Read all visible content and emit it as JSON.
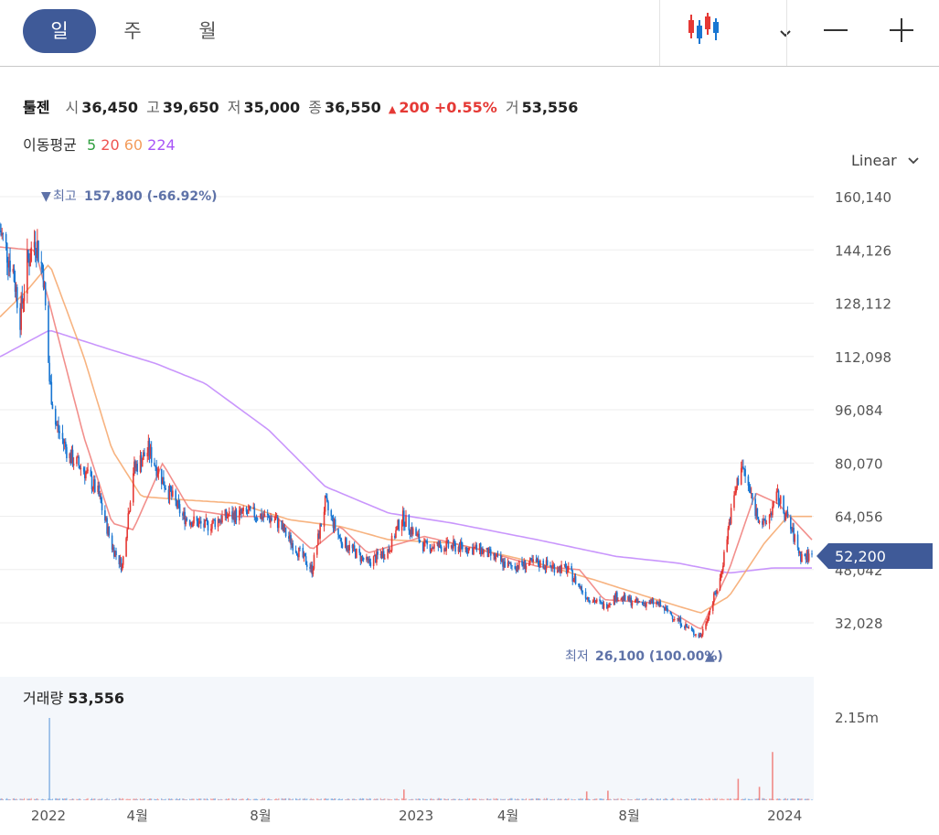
{
  "toolbar": {
    "tabs": [
      {
        "label": "일",
        "active": true
      },
      {
        "label": "주",
        "active": false
      },
      {
        "label": "월",
        "active": false
      }
    ],
    "chart_type_icon": "candlestick-icon",
    "zoom_out_icon": "minus-icon",
    "zoom_in_icon": "plus-icon"
  },
  "quote": {
    "name": "툴젠",
    "open_label": "시",
    "open": "36,450",
    "high_label": "고",
    "high": "39,650",
    "low_label": "저",
    "low": "35,000",
    "close_label": "종",
    "close": "36,550",
    "change": "200",
    "change_pct": "+0.55%",
    "volume_label": "거",
    "volume": "53,556"
  },
  "moving_average": {
    "label": "이동평균",
    "periods": [
      {
        "label": "5",
        "color": "#2e9e3e"
      },
      {
        "label": "20",
        "color": "#ef5350"
      },
      {
        "label": "60",
        "color": "#f39c5b"
      },
      {
        "label": "224",
        "color": "#a855f7"
      }
    ]
  },
  "scale": {
    "label": "Linear"
  },
  "annotations": {
    "high_label": "최고",
    "high_value": "157,800 (-66.92%)",
    "low_label": "최저",
    "low_value": "26,100 (100.00%)"
  },
  "current_price_tag": "52,200",
  "volume_panel": {
    "label": "거래량",
    "value": "53,556",
    "max_tick": "2.15m"
  },
  "colors": {
    "up": "#e53935",
    "down": "#1976d2",
    "accent": "#3f5a98"
  },
  "chart_data": {
    "type": "candlestick",
    "ylim": [
      32028,
      160140
    ],
    "y_ticks": [
      "160,140",
      "144,126",
      "128,112",
      "112,098",
      "96,084",
      "80,070",
      "64,056",
      "48,042",
      "32,028"
    ],
    "x_ticks": [
      "2022",
      "4월",
      "8월",
      "2023",
      "4월",
      "8월",
      "2024"
    ],
    "x_range": [
      "2021-11-16",
      "2024-01-29"
    ],
    "closing_price_path": [
      [
        "2021-11-16",
        150000
      ],
      [
        "2021-11-29",
        138000
      ],
      [
        "2021-12-06",
        124000
      ],
      [
        "2021-12-13",
        140000
      ],
      [
        "2021-12-21",
        148000
      ],
      [
        "2021-12-29",
        137000
      ],
      [
        "2022-01-04",
        105000
      ],
      [
        "2022-01-10",
        92000
      ],
      [
        "2022-01-24",
        82000
      ],
      [
        "2022-02-07",
        78000
      ],
      [
        "2022-02-21",
        71000
      ],
      [
        "2022-03-07",
        55000
      ],
      [
        "2022-03-17",
        49000
      ],
      [
        "2022-03-28",
        78000
      ],
      [
        "2022-04-12",
        84000
      ],
      [
        "2022-04-26",
        75000
      ],
      [
        "2022-05-16",
        64000
      ],
      [
        "2022-06-07",
        61000
      ],
      [
        "2022-06-27",
        64000
      ],
      [
        "2022-07-22",
        65000
      ],
      [
        "2022-08-16",
        63000
      ],
      [
        "2022-09-06",
        54000
      ],
      [
        "2022-09-21",
        48000
      ],
      [
        "2022-10-04",
        68000
      ],
      [
        "2022-10-19",
        57000
      ],
      [
        "2022-11-15",
        50000
      ],
      [
        "2022-12-06",
        54000
      ],
      [
        "2022-12-19",
        64000
      ],
      [
        "2023-01-10",
        55000
      ],
      [
        "2023-02-07",
        55000
      ],
      [
        "2023-03-07",
        54000
      ],
      [
        "2023-04-04",
        49000
      ],
      [
        "2023-05-02",
        50000
      ],
      [
        "2023-06-01",
        48000
      ],
      [
        "2023-06-20",
        40000
      ],
      [
        "2023-07-07",
        37000
      ],
      [
        "2023-07-19",
        40000
      ],
      [
        "2023-08-08",
        38000
      ],
      [
        "2023-08-28",
        38000
      ],
      [
        "2023-09-18",
        33000
      ],
      [
        "2023-10-04",
        29000
      ],
      [
        "2023-10-11",
        28000
      ],
      [
        "2023-10-30",
        45000
      ],
      [
        "2023-11-08",
        62000
      ],
      [
        "2023-11-20",
        80000
      ],
      [
        "2023-12-04",
        66000
      ],
      [
        "2023-12-13",
        61000
      ],
      [
        "2023-12-26",
        70000
      ],
      [
        "2024-01-05",
        63000
      ],
      [
        "2024-01-18",
        52000
      ],
      [
        "2024-01-29",
        52200
      ]
    ],
    "ma224_path": [
      [
        "2021-11-16",
        112000
      ],
      [
        "2022-01-04",
        120000
      ],
      [
        "2022-03-07",
        114000
      ],
      [
        "2022-04-19",
        110000
      ],
      [
        "2022-06-07",
        104000
      ],
      [
        "2022-08-09",
        90000
      ],
      [
        "2022-10-04",
        73000
      ],
      [
        "2022-12-06",
        65000
      ],
      [
        "2023-02-07",
        62000
      ],
      [
        "2023-05-02",
        57000
      ],
      [
        "2023-07-19",
        52000
      ],
      [
        "2023-09-18",
        50000
      ],
      [
        "2023-11-08",
        47000
      ],
      [
        "2023-12-21",
        48500
      ],
      [
        "2024-01-29",
        48500
      ]
    ],
    "ma60_path": [
      [
        "2021-11-16",
        124000
      ],
      [
        "2021-12-13",
        132000
      ],
      [
        "2022-01-04",
        140000
      ],
      [
        "2022-02-07",
        112000
      ],
      [
        "2022-03-07",
        84000
      ],
      [
        "2022-04-05",
        70000
      ],
      [
        "2022-05-16",
        69000
      ],
      [
        "2022-07-08",
        68000
      ],
      [
        "2022-08-30",
        63000
      ],
      [
        "2022-10-19",
        61000
      ],
      [
        "2022-12-06",
        57000
      ],
      [
        "2023-02-07",
        56000
      ],
      [
        "2023-05-02",
        50000
      ],
      [
        "2023-06-27",
        45000
      ],
      [
        "2023-08-28",
        39000
      ],
      [
        "2023-10-11",
        35000
      ],
      [
        "2023-11-08",
        40000
      ],
      [
        "2023-12-13",
        56000
      ],
      [
        "2024-01-05",
        64000
      ],
      [
        "2024-01-29",
        64000
      ]
    ],
    "ma20_path": [
      [
        "2021-11-16",
        145000
      ],
      [
        "2021-12-21",
        144000
      ],
      [
        "2022-01-04",
        128000
      ],
      [
        "2022-02-07",
        88000
      ],
      [
        "2022-03-07",
        62000
      ],
      [
        "2022-03-28",
        60000
      ],
      [
        "2022-04-26",
        80000
      ],
      [
        "2022-05-23",
        66000
      ],
      [
        "2022-07-08",
        64000
      ],
      [
        "2022-08-16",
        64000
      ],
      [
        "2022-09-21",
        54000
      ],
      [
        "2022-10-19",
        61000
      ],
      [
        "2022-11-15",
        53000
      ],
      [
        "2023-01-10",
        58000
      ],
      [
        "2023-03-07",
        54000
      ],
      [
        "2023-05-02",
        49000
      ],
      [
        "2023-06-13",
        48000
      ],
      [
        "2023-07-07",
        39000
      ],
      [
        "2023-08-28",
        38000
      ],
      [
        "2023-10-11",
        30000
      ],
      [
        "2023-11-08",
        48000
      ],
      [
        "2023-12-04",
        71000
      ],
      [
        "2023-12-26",
        68000
      ],
      [
        "2024-01-29",
        57000
      ]
    ],
    "volume_spikes": [
      [
        "2022-01-04",
        2150000
      ],
      [
        "2022-12-21",
        280000
      ],
      [
        "2023-06-20",
        230000
      ],
      [
        "2023-07-11",
        250000
      ],
      [
        "2023-11-17",
        560000
      ],
      [
        "2023-12-08",
        350000
      ],
      [
        "2023-12-21",
        1260000
      ]
    ],
    "volume_ylim": [
      0,
      2150000
    ]
  }
}
